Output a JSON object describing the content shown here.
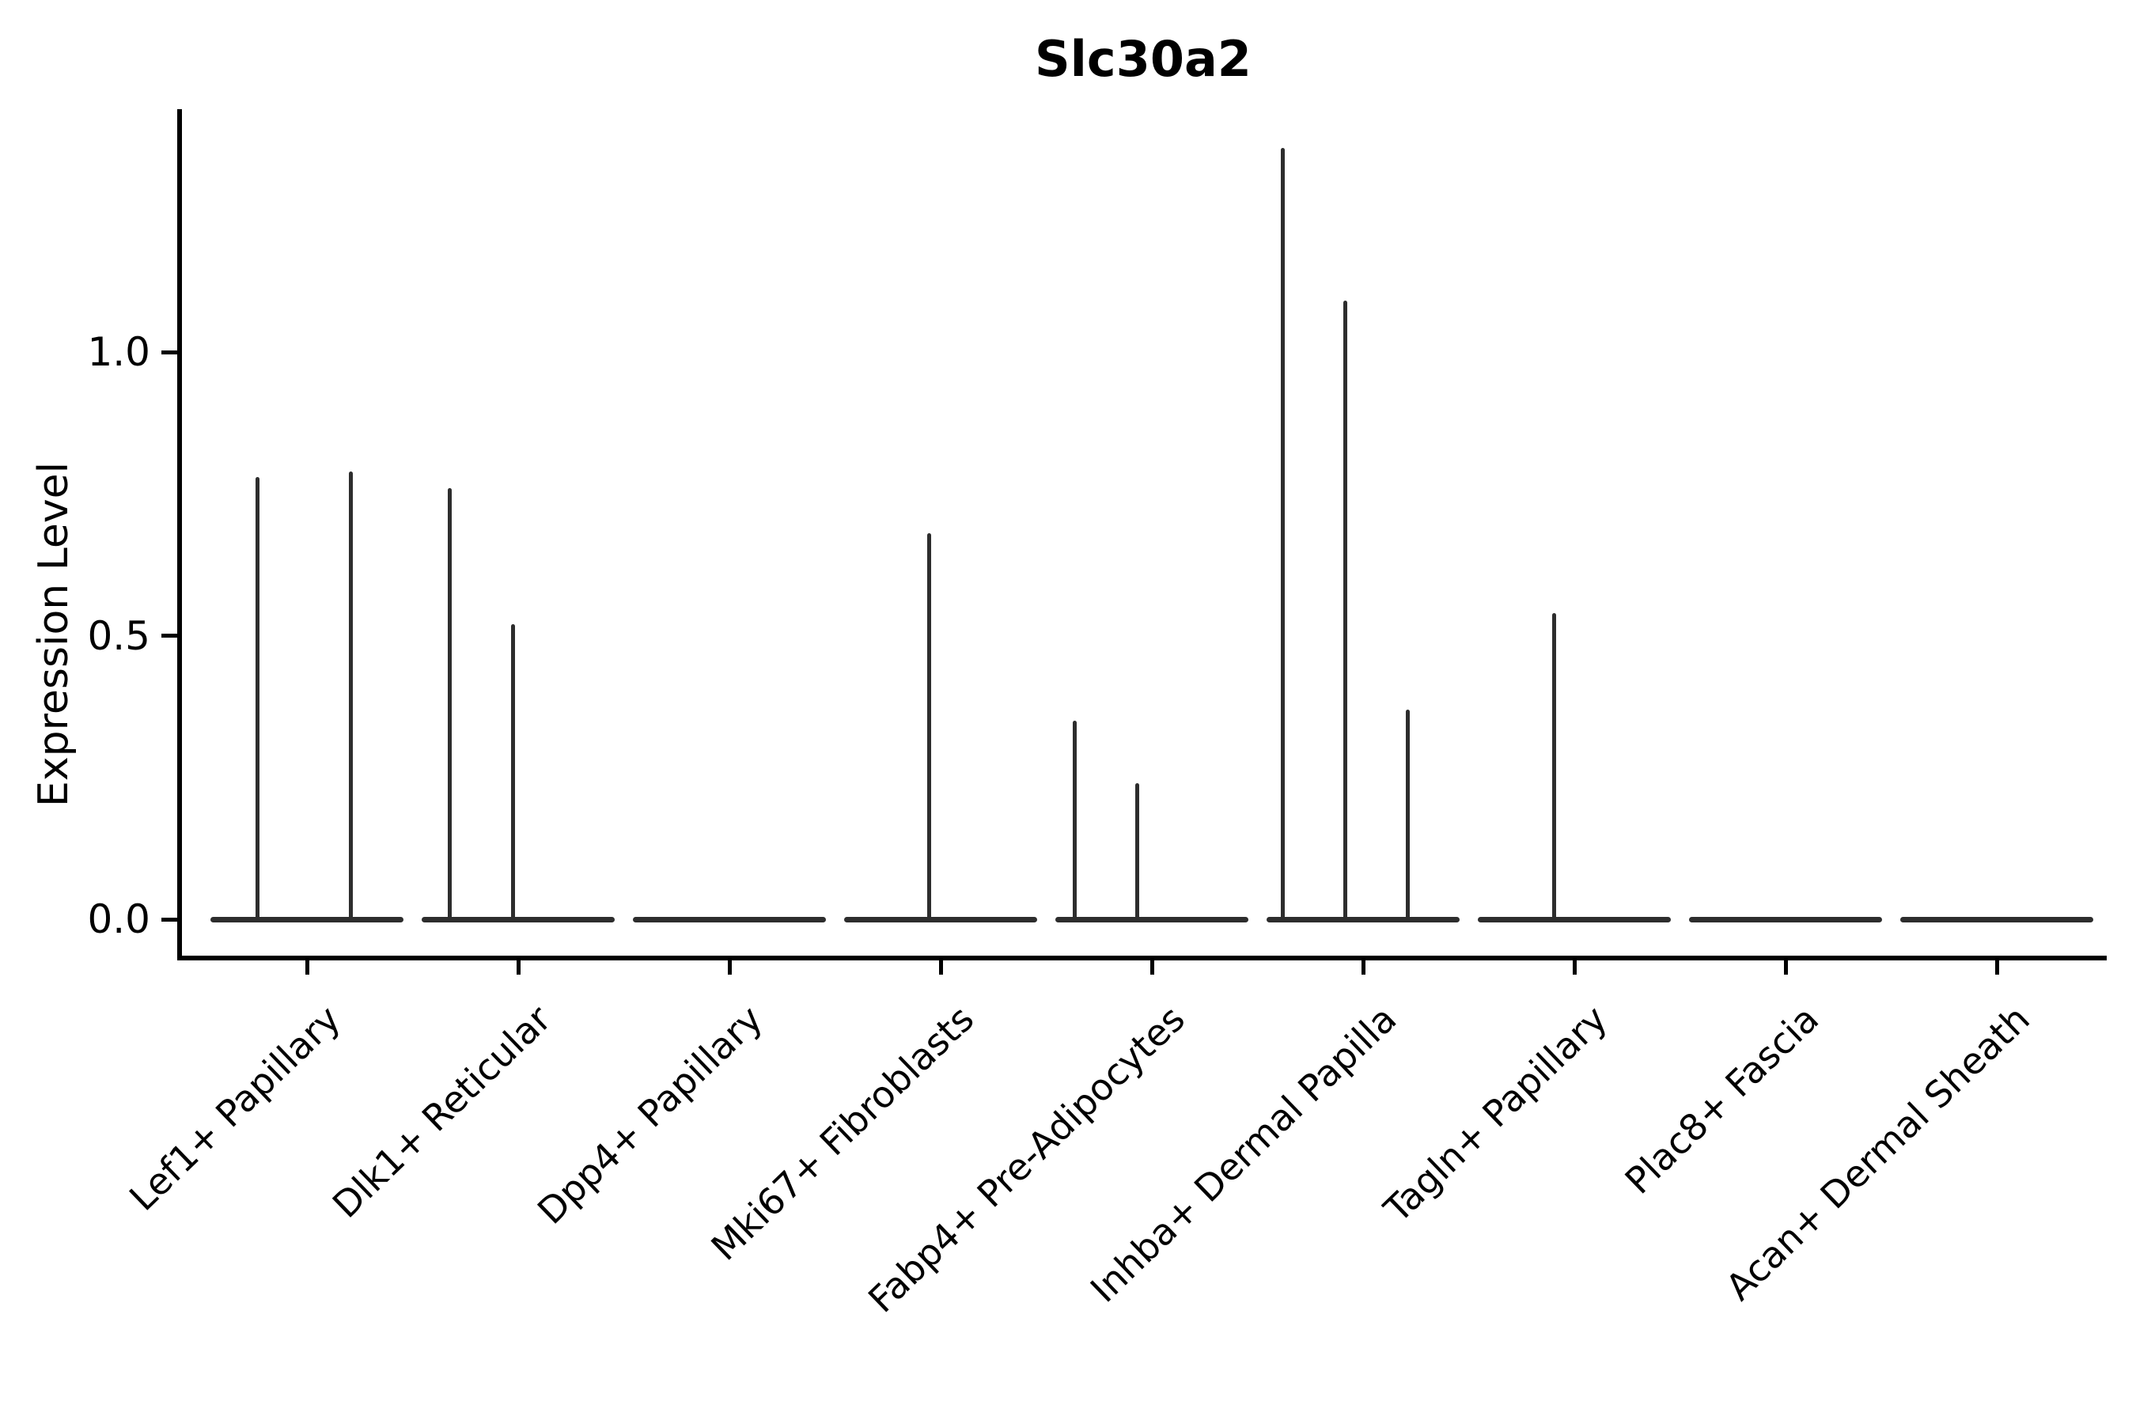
{
  "chart_data": {
    "type": "violin",
    "title": "Slc30a2",
    "xlabel": "",
    "ylabel": "Expression Level",
    "yticks": [
      "0.0",
      "0.5",
      "1.0"
    ],
    "ytick_values": [
      0.0,
      0.5,
      1.0
    ],
    "ylim": [
      -0.07,
      1.42
    ],
    "grid": false,
    "legend": "none",
    "ink_color": "#2d2d2d",
    "text_color": "#000000",
    "categories": [
      "Lef1+ Papillary",
      "Dlk1+ Reticular",
      "Dpp4+ Papillary",
      "Mki67+ Fibroblasts",
      "Fabp4+ Pre-Adipocytes",
      "Inhba+ Dermal Papilla",
      "Tagln+ Papillary",
      "Plac8+ Fascia",
      "Acan+ Dermal Sheath"
    ],
    "violins": [
      {
        "category": "Lef1+ Papillary",
        "baseline_value": 0.0,
        "spikes": [
          {
            "dx": -63,
            "value": 0.78
          },
          {
            "dx": 55,
            "value": 0.79
          }
        ]
      },
      {
        "category": "Dlk1+ Reticular",
        "baseline_value": 0.0,
        "spikes": [
          {
            "dx": -87,
            "value": 0.76
          },
          {
            "dx": -7,
            "value": 0.52
          }
        ]
      },
      {
        "category": "Dpp4+ Papillary",
        "baseline_value": 0.0,
        "spikes": []
      },
      {
        "category": "Mki67+ Fibroblasts",
        "baseline_value": 0.0,
        "spikes": [
          {
            "dx": -15,
            "value": 0.68
          }
        ]
      },
      {
        "category": "Fabp4+ Pre-Adipocytes",
        "baseline_value": 0.0,
        "spikes": [
          {
            "dx": -98,
            "value": 0.35
          },
          {
            "dx": -19,
            "value": 0.24
          }
        ]
      },
      {
        "category": "Inhba+ Dermal Papilla",
        "baseline_value": 0.0,
        "spikes": [
          {
            "dx": -102,
            "value": 1.36
          },
          {
            "dx": -23,
            "value": 1.09
          },
          {
            "dx": 56,
            "value": 0.37
          }
        ]
      },
      {
        "category": "Tagln+ Papillary",
        "baseline_value": 0.0,
        "spikes": [
          {
            "dx": -26,
            "value": 0.54
          }
        ]
      },
      {
        "category": "Plac8+ Fascia",
        "baseline_value": 0.0,
        "spikes": []
      },
      {
        "category": "Acan+ Dermal Sheath",
        "baseline_value": 0.0,
        "spikes": []
      }
    ]
  }
}
